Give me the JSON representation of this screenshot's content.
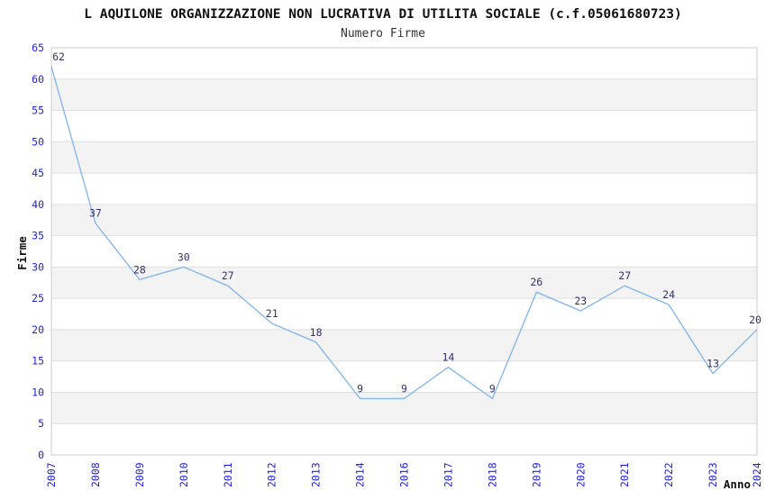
{
  "title": "L AQUILONE ORGANIZZAZIONE NON LUCRATIVA DI UTILITA SOCIALE (c.f.05061680723)",
  "subtitle": "Numero Firme",
  "chart_data": {
    "type": "line",
    "title": "L AQUILONE ORGANIZZAZIONE NON LUCRATIVA DI UTILITA SOCIALE (c.f.05061680723)",
    "subtitle": "Numero Firme",
    "categories": [
      "2007",
      "2008",
      "2009",
      "2010",
      "2011",
      "2012",
      "2013",
      "2014",
      "2016",
      "2017",
      "2018",
      "2019",
      "2020",
      "2021",
      "2022",
      "2023",
      "2024"
    ],
    "values": [
      62,
      37,
      28,
      30,
      27,
      21,
      18,
      9,
      9,
      14,
      9,
      26,
      23,
      27,
      24,
      13,
      20
    ],
    "xlabel": "Anno",
    "ylabel": "Firme",
    "ylim": [
      0,
      65
    ],
    "ytick_step": 5,
    "grid": true,
    "band_rows": true,
    "legend_position": "none",
    "colors": {
      "line": "#88b8e8",
      "tick_label": "#2222dd",
      "point_label": "#333366",
      "band": "#f3f3f3",
      "gridline": "#dfdfdf",
      "plot_border": "#cccccc",
      "background": "#ffffff"
    }
  }
}
